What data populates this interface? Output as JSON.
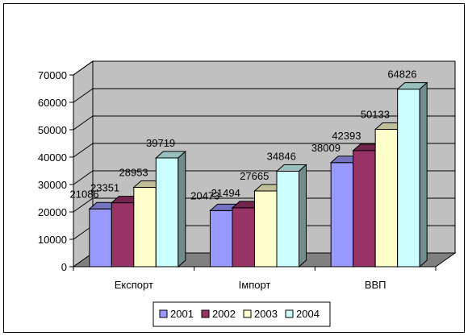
{
  "chart_data": {
    "type": "bar",
    "categories": [
      "Експорт",
      "Імпорт",
      "ВВП"
    ],
    "series": [
      {
        "name": "2001",
        "color": "#9999FF",
        "values": [
          21086,
          20473,
          38009
        ]
      },
      {
        "name": "2002",
        "color": "#993366",
        "values": [
          23351,
          21494,
          42393
        ]
      },
      {
        "name": "2003",
        "color": "#FFFFCC",
        "values": [
          28953,
          27665,
          50133
        ]
      },
      {
        "name": "2004",
        "color": "#CCFFFF",
        "values": [
          39719,
          34846,
          64826
        ]
      }
    ],
    "ylim": [
      0,
      70000
    ],
    "yticks": [
      0,
      10000,
      20000,
      30000,
      40000,
      50000,
      60000,
      70000
    ],
    "grid": true,
    "three_d": true,
    "wall_color": "#C0C0C0",
    "floor_color": "#808080",
    "legend_position": "bottom"
  }
}
